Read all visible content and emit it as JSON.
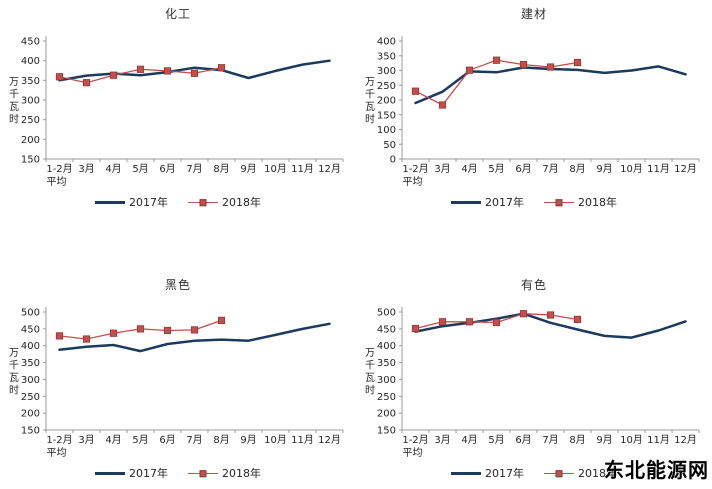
{
  "watermark": "东北能源网",
  "style": {
    "series_2017_color": "#1C3A5E",
    "series_2018_color": "#C0504D",
    "marker_border_color": "#943634",
    "axis_color": "#9B9B9B",
    "text_color": "#262626"
  },
  "chart_data": [
    {
      "type": "line",
      "title": "化工",
      "ylabel": "万千瓦时",
      "ymin": 150,
      "ymax": 450,
      "ystep": 50,
      "grid": false,
      "legend_position": "bottom",
      "categories": [
        "1-2月",
        "3月",
        "4月",
        "5月",
        "6月",
        "7月",
        "8月",
        "9月",
        "10月",
        "11月",
        "12月"
      ],
      "first_category_line2": "平均",
      "series": [
        {
          "name": "2017年",
          "color": "#1C3A5E",
          "marker": "none",
          "values": [
            350,
            362,
            367,
            363,
            371,
            382,
            376,
            356,
            374,
            390,
            400
          ]
        },
        {
          "name": "2018年",
          "color": "#C0504D",
          "marker": "square",
          "values": [
            359,
            344,
            363,
            378,
            374,
            368,
            382
          ]
        }
      ]
    },
    {
      "type": "line",
      "title": "建材",
      "ylabel": "万千瓦时",
      "ymin": 0,
      "ymax": 400,
      "ystep": 50,
      "grid": false,
      "legend_position": "bottom",
      "categories": [
        "1-2月",
        "3月",
        "4月",
        "5月",
        "6月",
        "7月",
        "8月",
        "9月",
        "10月",
        "11月",
        "12月"
      ],
      "first_category_line2": "平均",
      "series": [
        {
          "name": "2017年",
          "color": "#1C3A5E",
          "marker": "none",
          "values": [
            190,
            228,
            297,
            294,
            310,
            305,
            302,
            292,
            300,
            314,
            287
          ]
        },
        {
          "name": "2018年",
          "color": "#C0504D",
          "marker": "square",
          "values": [
            230,
            183,
            301,
            335,
            320,
            312,
            327
          ]
        }
      ]
    },
    {
      "type": "line",
      "title": "黑色",
      "ylabel": "万千瓦时",
      "ymin": 150,
      "ymax": 500,
      "ystep": 50,
      "grid": false,
      "legend_position": "bottom",
      "categories": [
        "1-2月",
        "3月",
        "4月",
        "5月",
        "6月",
        "7月",
        "8月",
        "9月",
        "10月",
        "11月",
        "12月"
      ],
      "first_category_line2": "平均",
      "series": [
        {
          "name": "2017年",
          "color": "#1C3A5E",
          "marker": "none",
          "values": [
            388,
            397,
            402,
            384,
            405,
            415,
            418,
            415,
            432,
            450,
            465
          ]
        },
        {
          "name": "2018年",
          "color": "#C0504D",
          "marker": "square",
          "values": [
            429,
            420,
            437,
            450,
            445,
            447,
            475
          ]
        }
      ]
    },
    {
      "type": "line",
      "title": "有色",
      "ylabel": "万千瓦时",
      "ymin": 150,
      "ymax": 500,
      "ystep": 50,
      "grid": false,
      "legend_position": "bottom",
      "categories": [
        "1-2月",
        "3月",
        "4月",
        "5月",
        "6月",
        "7月",
        "8月",
        "9月",
        "10月",
        "11月",
        "12月"
      ],
      "first_category_line2": "平均",
      "series": [
        {
          "name": "2017年",
          "color": "#1C3A5E",
          "marker": "none",
          "values": [
            442,
            458,
            468,
            480,
            495,
            468,
            448,
            429,
            424,
            445,
            472
          ]
        },
        {
          "name": "2018年",
          "color": "#C0504D",
          "marker": "square",
          "values": [
            451,
            471,
            471,
            469,
            495,
            491,
            478
          ]
        }
      ]
    }
  ]
}
